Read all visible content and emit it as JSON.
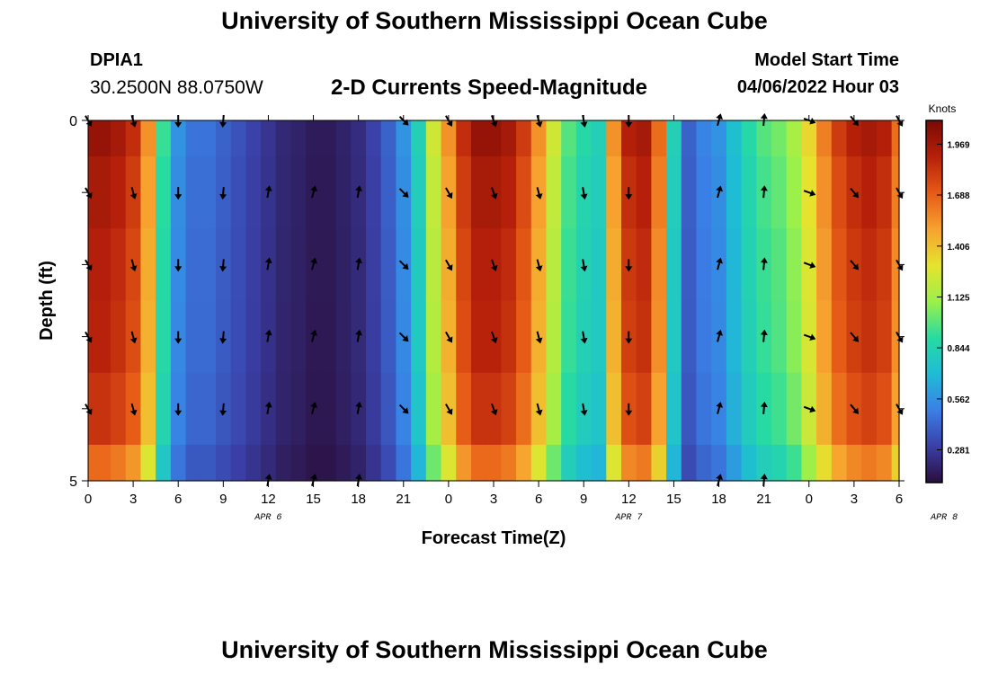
{
  "header": {
    "title_top": "University of Southern Mississippi Ocean Cube",
    "title_bottom": "University of Southern Mississippi Ocean Cube",
    "station_id": "DPIA1",
    "station_coords": "30.2500N  88.0750W",
    "chart_title": "2-D Currents Speed-Magnitude",
    "model_label": "Model Start Time",
    "model_start": "04/06/2022 Hour 03"
  },
  "colors": {
    "background": "#ffffff",
    "colormap": [
      "#2a0e3c",
      "#3a3fa6",
      "#3a7fe6",
      "#1fbcd6",
      "#27dba1",
      "#9cf04a",
      "#e5e32e",
      "#f7a22f",
      "#e65a16",
      "#b6200a",
      "#7a0a04"
    ],
    "arrow": "#000000"
  },
  "chart_data": {
    "type": "heatmap",
    "title": "2-D Currents Speed-Magnitude",
    "xlabel": "Forecast Time(Z)",
    "ylabel": "Depth (ft)",
    "x_tick_labels": [
      "0",
      "3",
      "6",
      "9",
      "12",
      "15",
      "18",
      "21",
      "0",
      "3",
      "6",
      "9",
      "12",
      "15",
      "18",
      "21",
      "0",
      "3",
      "6"
    ],
    "y_tick_labels": [
      "0",
      "5"
    ],
    "ylim": [
      0,
      5
    ],
    "date_labels": [
      {
        "label": "APR 6",
        "hour_index": 12
      },
      {
        "label": "APR 7",
        "hour_index": 36
      },
      {
        "label": "APR 8",
        "hour_index": 57
      }
    ],
    "colorbar": {
      "unit": "Knots",
      "ticks": [
        "1.969",
        "1.688",
        "1.406",
        "1.125",
        "0.844",
        "0.562",
        "0.281"
      ],
      "range": [
        0.1,
        2.1
      ]
    },
    "hours": 55,
    "depth_layers": 5,
    "column_speeds_knots": [
      1.95,
      1.95,
      1.9,
      1.8,
      1.5,
      0.9,
      0.55,
      0.45,
      0.45,
      0.4,
      0.35,
      0.3,
      0.25,
      0.2,
      0.18,
      0.15,
      0.15,
      0.18,
      0.22,
      0.3,
      0.4,
      0.55,
      0.8,
      1.2,
      1.5,
      1.8,
      1.95,
      1.95,
      1.9,
      1.75,
      1.5,
      1.2,
      0.95,
      0.85,
      0.8,
      1.5,
      1.85,
      1.9,
      1.6,
      0.8,
      0.4,
      0.5,
      0.55,
      0.7,
      0.85,
      0.95,
      1.0,
      1.1,
      1.3,
      1.55,
      1.75,
      1.85,
      1.9,
      1.85,
      1.6
    ],
    "depth_factors": [
      1.03,
      1.0,
      0.98,
      0.97,
      0.94,
      0.85
    ],
    "arrow_grid": {
      "times": [
        0,
        3,
        6,
        9,
        12,
        15,
        18,
        21,
        24,
        27,
        30,
        33,
        36,
        39,
        42,
        45,
        48,
        51,
        54
      ],
      "depths": [
        0,
        1,
        2,
        3,
        4,
        5
      ],
      "direction_deg_by_time": [
        150,
        165,
        180,
        185,
        10,
        15,
        10,
        135,
        150,
        160,
        165,
        170,
        180,
        null,
        15,
        5,
        110,
        140,
        150
      ],
      "missing": [
        {
          "t": 12,
          "d": 0
        },
        {
          "t": 15,
          "d": 0
        },
        {
          "t": 18,
          "d": 0
        },
        {
          "t": 0,
          "d": 5
        },
        {
          "t": 3,
          "d": 5
        },
        {
          "t": 6,
          "d": 5
        },
        {
          "t": 9,
          "d": 5
        },
        {
          "t": 21,
          "d": 5
        },
        {
          "t": 24,
          "d": 5
        },
        {
          "t": 27,
          "d": 5
        },
        {
          "t": 30,
          "d": 5
        },
        {
          "t": 33,
          "d": 5
        },
        {
          "t": 36,
          "d": 5
        },
        {
          "t": 48,
          "d": 5
        },
        {
          "t": 51,
          "d": 5
        },
        {
          "t": 54,
          "d": 5
        },
        {
          "t": 39,
          "d": 1
        },
        {
          "t": 39,
          "d": 2
        },
        {
          "t": 39,
          "d": 3
        },
        {
          "t": 39,
          "d": 4
        },
        {
          "t": 39,
          "d": 0
        }
      ]
    }
  }
}
